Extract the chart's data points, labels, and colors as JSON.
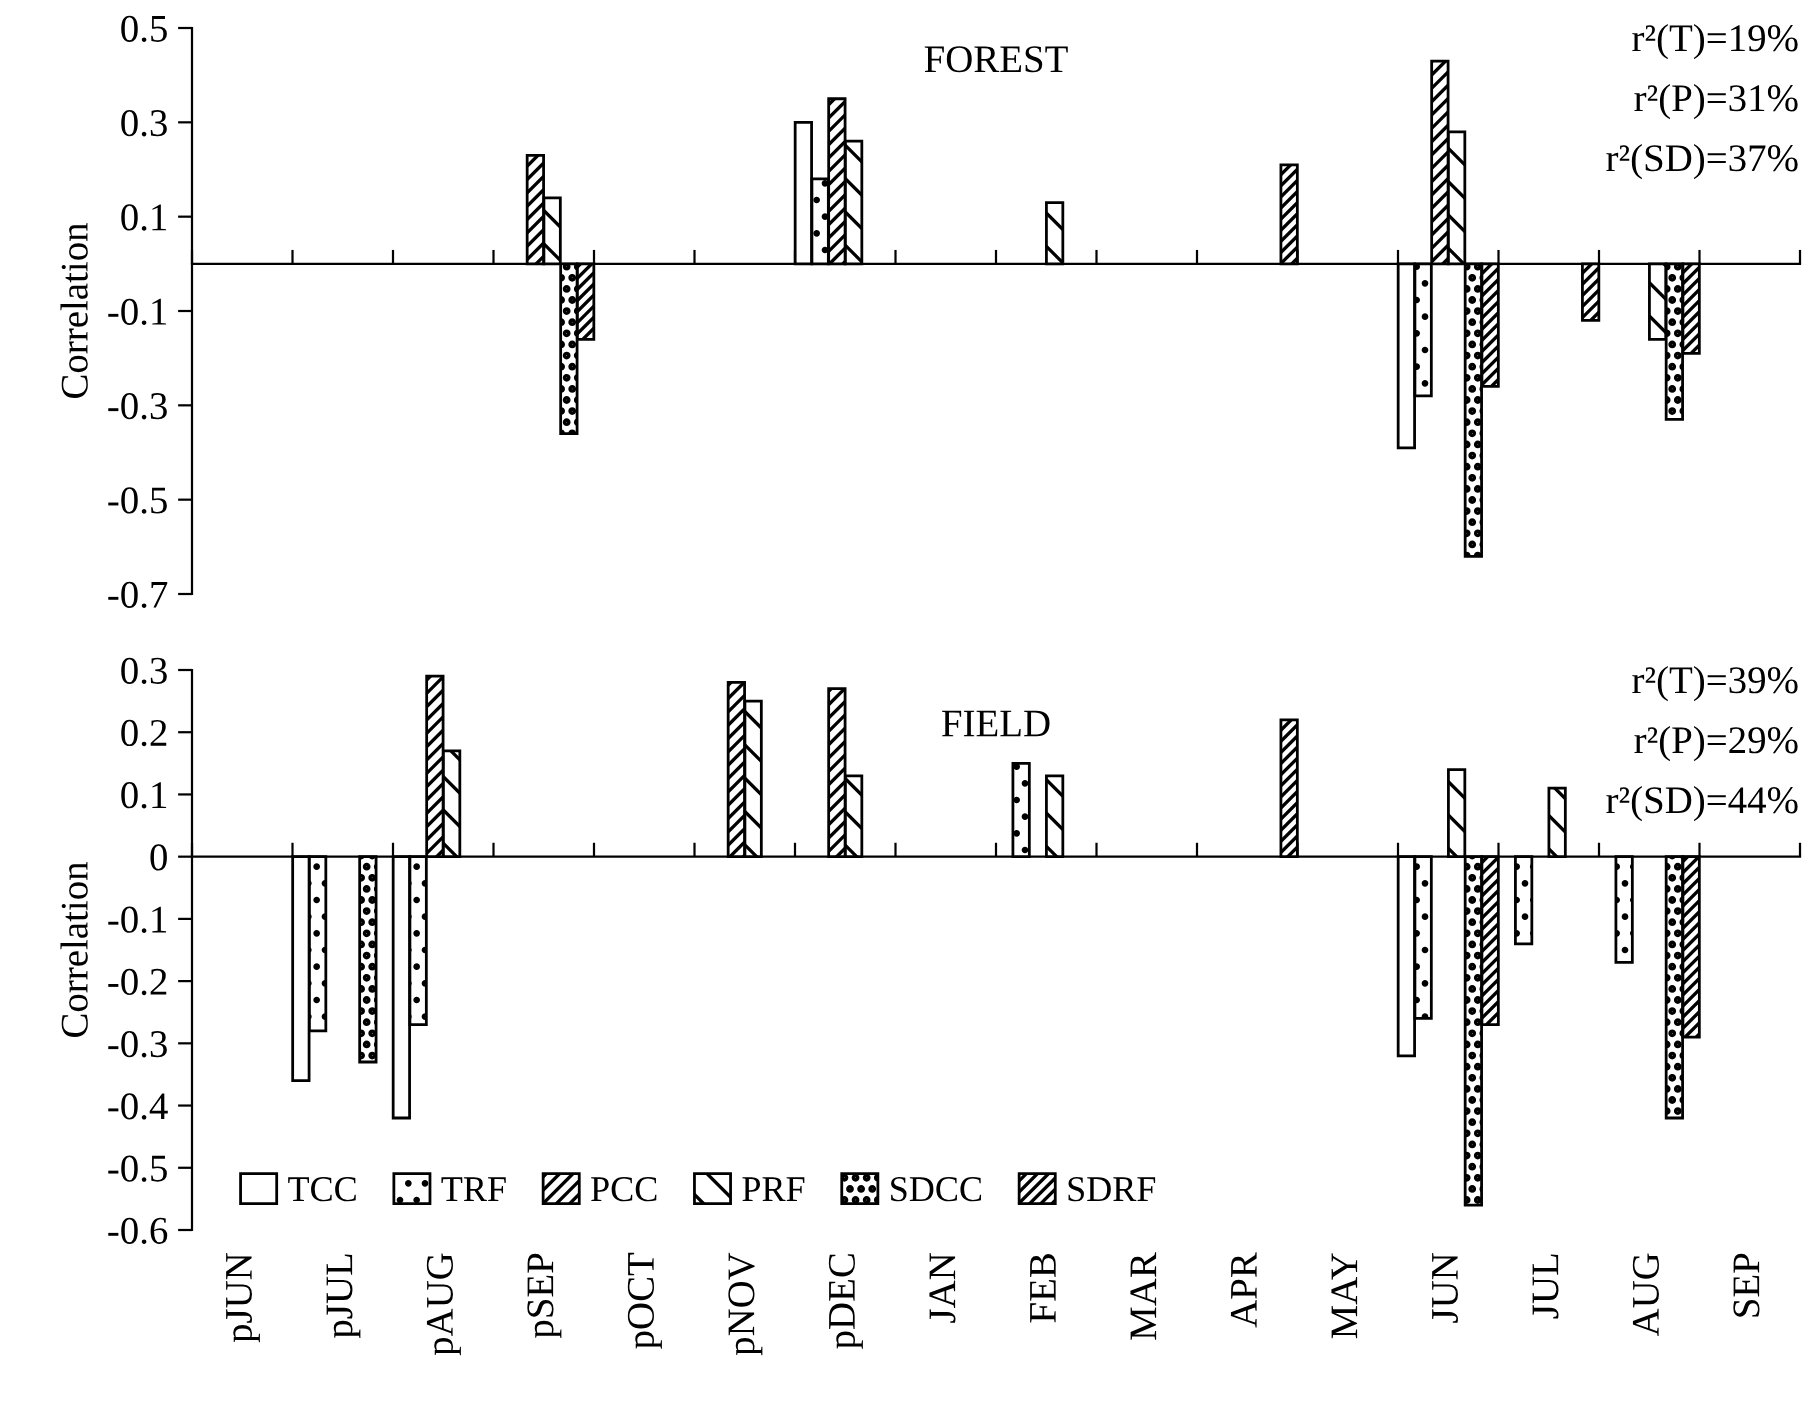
{
  "chart_data": [
    {
      "type": "bar",
      "title": "FOREST",
      "ylabel": "Correlation",
      "tick_labels": "y",
      "legend": false,
      "categories": [
        null,
        null,
        null,
        null,
        null,
        null,
        null,
        null,
        null,
        null,
        null,
        null,
        null,
        null,
        null,
        null
      ],
      "ylim": [
        -0.7,
        0.5
      ],
      "yticks": [
        0.5,
        0.3,
        0.1,
        -0.1,
        -0.3,
        -0.5,
        -0.7
      ],
      "annotations": [
        "r²(T)=19%",
        "r²(P)=31%",
        "r²(SD)=37%"
      ],
      "series": [
        {
          "color": "#ffffff",
          "values": [
            null,
            null,
            null,
            null,
            null,
            null,
            0.3,
            null,
            null,
            null,
            null,
            null,
            -0.39,
            null,
            null,
            null
          ]
        },
        {
          "color": "#000000",
          "values": [
            null,
            null,
            null,
            null,
            null,
            null,
            0.18,
            null,
            null,
            null,
            null,
            null,
            -0.28,
            null,
            null,
            null
          ]
        },
        {
          "color": "#000000",
          "values": [
            null,
            null,
            null,
            0.23,
            null,
            null,
            0.35,
            null,
            null,
            null,
            null,
            null,
            0.43,
            null,
            null,
            null
          ]
        },
        {
          "color": "#000000",
          "values": [
            null,
            null,
            null,
            0.14,
            null,
            null,
            0.26,
            null,
            0.13,
            null,
            null,
            null,
            0.28,
            null,
            -0.16,
            null
          ]
        },
        {
          "color": "#000000",
          "values": [
            null,
            null,
            null,
            -0.36,
            null,
            null,
            null,
            null,
            null,
            null,
            null,
            null,
            -0.62,
            null,
            -0.33,
            null
          ]
        },
        {
          "color": "#000000",
          "values": [
            null,
            null,
            null,
            -0.16,
            null,
            null,
            null,
            null,
            null,
            null,
            0.21,
            null,
            -0.26,
            -0.12,
            -0.19,
            null
          ]
        }
      ]
    },
    {
      "type": "bar",
      "title": "FIELD",
      "ylabel": "Correlation",
      "legend": "bottom left",
      "categories": [
        "pJUN",
        "pJUL",
        "pAUG",
        "pSEP",
        "pOCT",
        "pNOV",
        "pDEC",
        "JAN",
        "FEB",
        "MAR",
        "APR",
        "MAY",
        "JUN",
        "JUL",
        "AUG",
        "SEP"
      ],
      "ylim": [
        -0.6,
        0.3
      ],
      "yticks": [
        0.3,
        0.2,
        0.1,
        0,
        -0.1,
        -0.2,
        -0.3,
        -0.4,
        -0.5,
        -0.6
      ],
      "annotations": [
        "r²(T)=39%",
        "r²(P)=29%",
        "r²(SD)=44%"
      ],
      "series": [
        {
          "name": "TCC",
          "color": "#ffffff",
          "values": [
            null,
            -0.36,
            -0.42,
            null,
            null,
            null,
            null,
            null,
            null,
            null,
            null,
            null,
            -0.32,
            null,
            null,
            null
          ]
        },
        {
          "name": "TRF",
          "color": "#000000",
          "values": [
            null,
            -0.28,
            -0.27,
            null,
            null,
            null,
            null,
            null,
            0.15,
            null,
            null,
            null,
            -0.26,
            -0.14,
            -0.17,
            null
          ]
        },
        {
          "name": "PCC",
          "color": "#000000",
          "values": [
            null,
            null,
            0.29,
            null,
            null,
            0.28,
            0.27,
            null,
            null,
            null,
            null,
            null,
            null,
            null,
            null,
            null
          ]
        },
        {
          "name": "PRF",
          "color": "#000000",
          "values": [
            null,
            null,
            0.17,
            null,
            null,
            0.25,
            0.13,
            null,
            0.13,
            null,
            null,
            null,
            0.14,
            0.11,
            null,
            null
          ]
        },
        {
          "name": "SDCC",
          "color": "#000000",
          "values": [
            null,
            -0.33,
            null,
            null,
            null,
            null,
            null,
            null,
            null,
            null,
            null,
            null,
            -0.56,
            null,
            -0.42,
            null
          ]
        },
        {
          "name": "SDRF",
          "color": "#000000",
          "values": [
            null,
            null,
            null,
            null,
            null,
            null,
            null,
            null,
            null,
            null,
            0.22,
            null,
            -0.27,
            null,
            -0.29,
            null
          ]
        }
      ]
    }
  ]
}
